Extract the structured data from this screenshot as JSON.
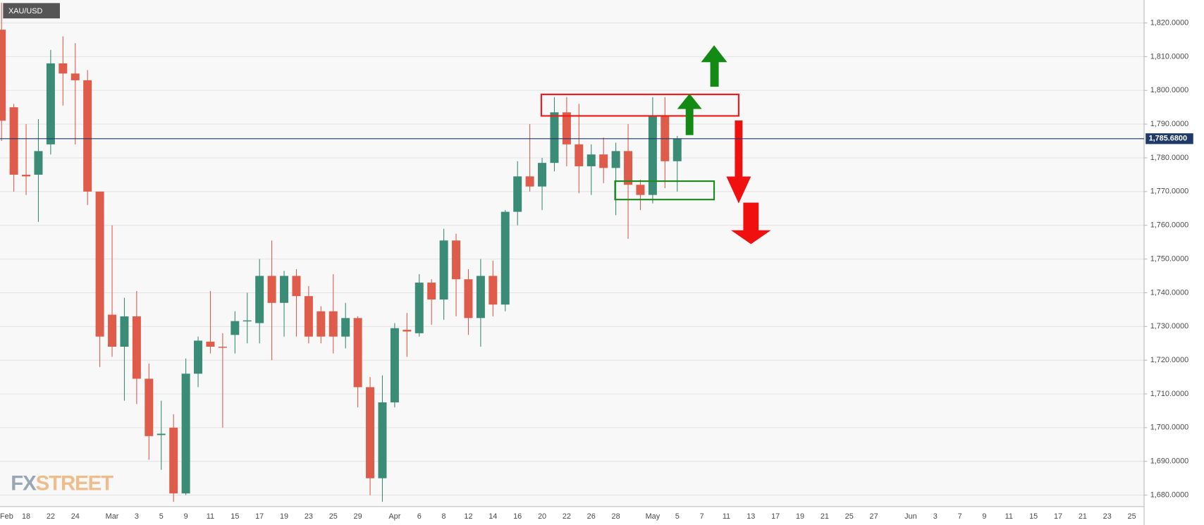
{
  "chart_data": {
    "type": "candlestick",
    "title": "XAU/USD",
    "watermark": [
      "FX",
      "STREET"
    ],
    "up_color": "#3a8c77",
    "down_color": "#de5c49",
    "grid": true,
    "ylim": [
      1676.6,
      1826.8
    ],
    "yticks": [
      {
        "value": 1680,
        "label": "1,680.0000"
      },
      {
        "value": 1690,
        "label": "1,690.0000"
      },
      {
        "value": 1700,
        "label": "1,700.0000"
      },
      {
        "value": 1710,
        "label": "1,710.0000"
      },
      {
        "value": 1720,
        "label": "1,720.0000"
      },
      {
        "value": 1730,
        "label": "1,730.0000"
      },
      {
        "value": 1740,
        "label": "1,740.0000"
      },
      {
        "value": 1750,
        "label": "1,750.0000"
      },
      {
        "value": 1760,
        "label": "1,760.0000"
      },
      {
        "value": 1770,
        "label": "1,770.0000"
      },
      {
        "value": 1780,
        "label": "1,780.0000"
      },
      {
        "value": 1790,
        "label": "1,790.0000"
      },
      {
        "value": 1800,
        "label": "1,800.0000"
      },
      {
        "value": 1810,
        "label": "1,810.0000"
      },
      {
        "value": 1820,
        "label": "1,820.0000"
      }
    ],
    "last_price": {
      "value": 1785.68,
      "label": "1,785.6800"
    },
    "categories": [
      "Feb",
      null,
      "18",
      null,
      "22",
      null,
      "24",
      null,
      null,
      "Mar",
      null,
      "3",
      null,
      "5",
      null,
      "9",
      null,
      "11",
      null,
      "15",
      null,
      "17",
      null,
      "19",
      null,
      "23",
      null,
      "25",
      null,
      "29",
      null,
      null,
      "Apr",
      null,
      "6",
      null,
      "8",
      null,
      "12",
      null,
      "14",
      null,
      "16",
      null,
      "20",
      null,
      "22",
      null,
      "26",
      null,
      "28",
      null,
      null,
      "May",
      null,
      "5",
      null,
      "7",
      null,
      "11",
      null,
      "13",
      null,
      "17",
      null,
      "19",
      null,
      "21",
      null,
      "25",
      null,
      "27",
      null,
      null,
      "Jun",
      null,
      "3",
      null,
      "7",
      null,
      "9",
      null,
      "11",
      null,
      "15",
      null,
      "17",
      null,
      "21",
      null,
      "23",
      null,
      "25"
    ],
    "open": [
      1818,
      1795,
      1775,
      1775,
      1784,
      1808,
      1805,
      1803,
      1770,
      1733.5,
      1724,
      1733,
      1714.5,
      1697.8,
      1700,
      1680.5,
      1716,
      1725.5,
      1724,
      1727.5,
      1731.5,
      1731,
      1745,
      1737,
      1745,
      1739,
      1734.5,
      1734.5,
      1727,
      1732.5,
      1712,
      1685,
      1707.5,
      1729,
      1728,
      1743,
      1738,
      1755.5,
      1744,
      1732.5,
      1745,
      1736.5,
      1764,
      1774.5,
      1771.5,
      1778.5,
      1793.5,
      1784,
      1777.5,
      1781,
      1777,
      1782,
      1772,
      1769,
      1792.5,
      1779,
      null,
      null,
      null,
      null,
      null,
      null,
      null,
      null,
      null,
      null,
      null,
      null,
      null,
      null,
      null,
      null,
      null,
      null,
      null,
      null,
      null,
      null,
      null,
      null,
      null,
      null,
      null,
      null,
      null,
      null,
      null,
      null,
      null,
      null,
      null,
      null,
      null
    ],
    "high": [
      1826,
      1796,
      1790,
      1791.5,
      1812,
      1816,
      1814,
      1806,
      1770,
      1760,
      1738.5,
      1740.5,
      1719,
      1708,
      1704,
      1720.5,
      1727,
      1740.5,
      1728,
      1734.5,
      1740,
      1750,
      1755.5,
      1746.5,
      1747,
      1742,
      1736,
      1745.5,
      1737,
      1733,
      1715,
      1715.5,
      1731,
      1734,
      1745.5,
      1744,
      1759,
      1757.5,
      1747,
      1750,
      1749.5,
      1764.5,
      1779,
      1790,
      1780,
      1798,
      1798,
      1796,
      1784,
      1786,
      1784.5,
      1790,
      1773.5,
      1798,
      1798,
      1786.5,
      null,
      null,
      null,
      null,
      null,
      null,
      null,
      null,
      null,
      null,
      null,
      null,
      null,
      null,
      null,
      null,
      null,
      null,
      null,
      null,
      null,
      null,
      null,
      null,
      null,
      null,
      null,
      null,
      null,
      null,
      null,
      null,
      null,
      null,
      null,
      null,
      null
    ],
    "low": [
      1785,
      1770,
      1769,
      1761,
      1781,
      1795.5,
      1784,
      1766,
      1718,
      1721,
      1708,
      1707,
      1690.5,
      1687.5,
      1678,
      1680,
      1712,
      1722,
      1700,
      1722,
      1725,
      1725,
      1720,
      1727,
      1727,
      1725,
      1725,
      1722,
      1723.5,
      1706,
      1680,
      1678,
      1706,
      1721,
      1727,
      1730.5,
      1732,
      1733,
      1727.5,
      1724,
      1733,
      1734.5,
      1760,
      1770,
      1764.5,
      1776,
      1777.5,
      1769.5,
      1769,
      1772.5,
      1763,
      1756,
      1764.5,
      1766.5,
      1771,
      1770,
      null,
      null,
      null,
      null,
      null,
      null,
      null,
      null,
      null,
      null,
      null,
      null,
      null,
      null,
      null,
      null,
      null,
      null,
      null,
      null,
      null,
      null,
      null,
      null,
      null,
      null,
      null,
      null,
      null,
      null,
      null,
      null,
      null,
      null,
      null,
      null,
      null
    ],
    "close": [
      1791,
      1775,
      1774.5,
      1782,
      1808,
      1805,
      1803,
      1770,
      1727,
      1724,
      1733,
      1714.5,
      1697.5,
      1698.2,
      1680.5,
      1716,
      1725.8,
      1724,
      1723.7,
      1731.6,
      1731.8,
      1745,
      1737,
      1745,
      1739,
      1727,
      1727,
      1727,
      1732.5,
      1712,
      1685,
      1707.5,
      1729.5,
      1728.5,
      1743,
      1738,
      1755.5,
      1744,
      1732.5,
      1745,
      1736.5,
      1764,
      1774.5,
      1771.5,
      1778.5,
      1793.5,
      1784,
      1777.5,
      1781,
      1777,
      1782,
      1772,
      1769,
      1792.5,
      1779,
      1785.7,
      null,
      null,
      null,
      null,
      null,
      null,
      null,
      null,
      null,
      null,
      null,
      null,
      null,
      null,
      null,
      null,
      null,
      null,
      null,
      null,
      null,
      null,
      null,
      null,
      null,
      null,
      null,
      null,
      null,
      null,
      null,
      null,
      null,
      null,
      null,
      null,
      null
    ]
  }
}
